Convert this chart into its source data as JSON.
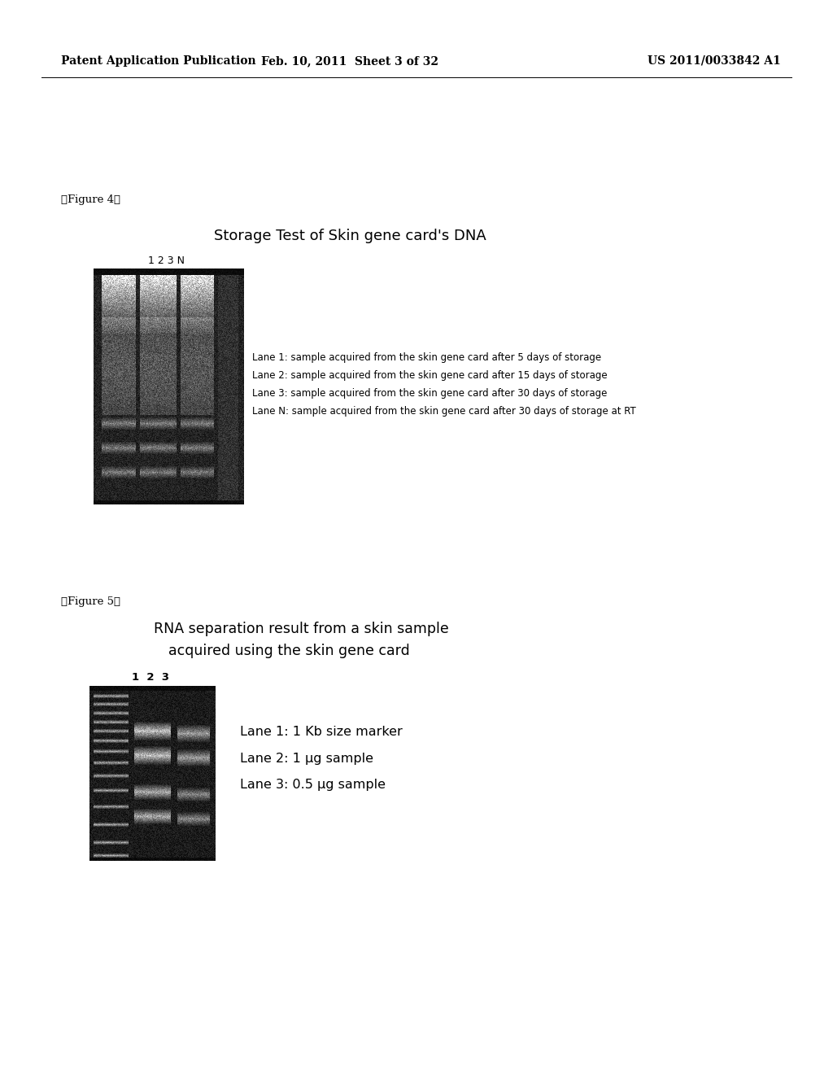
{
  "bg_color": "#ffffff",
  "header_left": "Patent Application Publication",
  "header_center": "Feb. 10, 2011  Sheet 3 of 32",
  "header_right": "US 2011/0033842 A1",
  "fig4_label": "【Figure 4】",
  "fig4_title": "Storage Test of Skin gene card's DNA",
  "fig4_lane_label": "1 2 3 N",
  "fig4_annotations": [
    "Lane 1: sample acquired from the skin gene card after 5 days of storage",
    "Lane 2: sample acquired from the skin gene card after 15 days of storage",
    "Lane 3: sample acquired from the skin gene card after 30 days of storage",
    "Lane N: sample acquired from the skin gene card after 30 days of storage at RT"
  ],
  "fig5_label": "【Figure 5】",
  "fig5_title_line1": "RNA separation result from a skin sample",
  "fig5_title_line2": "acquired using the skin gene card",
  "fig5_lane_label": "1  2  3",
  "fig5_annotations": [
    "Lane 1: 1 Kb size marker",
    "Lane 2: 1 μg sample",
    "Lane 3: 0.5 μg sample"
  ]
}
